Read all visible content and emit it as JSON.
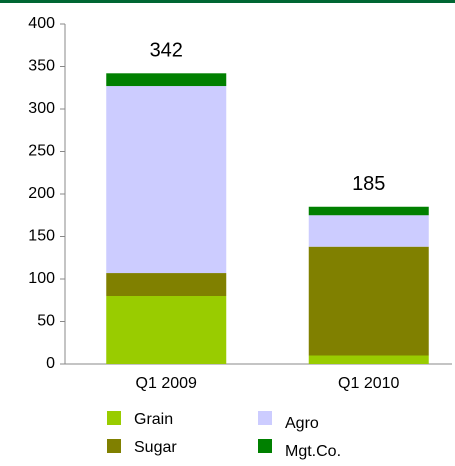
{
  "chart_data": {
    "type": "stacked_bar",
    "categories": [
      "Q1 2009",
      "Q1 2010"
    ],
    "series": [
      {
        "name": "Grain",
        "color": "#99cc00",
        "values": [
          80,
          10
        ]
      },
      {
        "name": "Sugar",
        "color": "#808000",
        "values": [
          27,
          128
        ]
      },
      {
        "name": "Agro",
        "color": "#ccccff",
        "values": [
          220,
          37
        ]
      },
      {
        "name": "Mgt.Co.",
        "color": "#008000",
        "values": [
          15,
          10
        ]
      }
    ],
    "totals": [
      342,
      185
    ],
    "ylim": [
      0,
      400
    ],
    "yticks": [
      0,
      50,
      100,
      150,
      200,
      250,
      300,
      350,
      400
    ]
  }
}
